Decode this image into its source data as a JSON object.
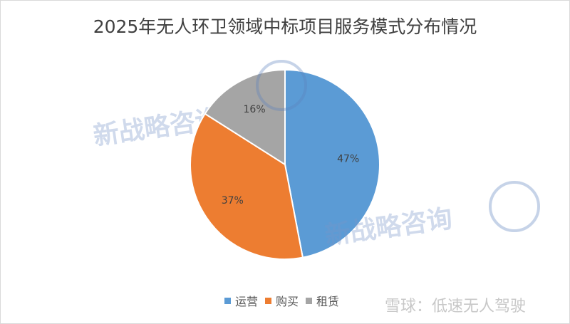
{
  "chart_data": {
    "type": "pie",
    "title": "2025年无人环卫领域中标项目服务模式分布情况",
    "categories": [
      "运营",
      "购买",
      "租赁"
    ],
    "values": [
      47,
      37,
      16
    ],
    "labels": [
      "47%",
      "37%",
      "16%"
    ],
    "colors": [
      "#5B9BD5",
      "#ED7D31",
      "#A5A5A5"
    ],
    "start": "12 o'clock, clockwise",
    "legend_position": "bottom"
  },
  "watermarks": {
    "left": "新战略咨询",
    "center": "新战略咨询",
    "footer": "雪球：低速无人驾驶"
  }
}
